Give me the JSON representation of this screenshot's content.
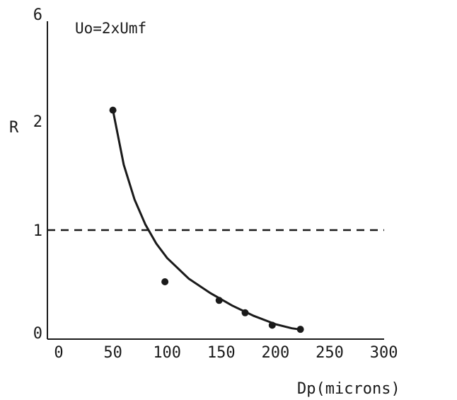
{
  "chart_data": {
    "type": "scatter",
    "title": "",
    "annotation": "Uo=2xUmf",
    "xlabel": "Dp(microns)",
    "ylabel": "R",
    "xlim": [
      0,
      300
    ],
    "x_ticks": [
      "0",
      "50",
      "100",
      "150",
      "200",
      "250",
      "300"
    ],
    "y_ticks": [
      "0",
      "1",
      "2",
      "6"
    ],
    "grid": false,
    "series": [
      {
        "kind": "points",
        "points": [
          {
            "x": 50,
            "y": 2.1
          },
          {
            "x": 98,
            "y": 0.5
          },
          {
            "x": 148,
            "y": 0.32
          },
          {
            "x": 172,
            "y": 0.2
          },
          {
            "x": 197,
            "y": 0.08
          },
          {
            "x": 223,
            "y": 0.04
          }
        ]
      },
      {
        "kind": "fitted-curve",
        "points": [
          {
            "x": 50,
            "y": 2.1
          },
          {
            "x": 60,
            "y": 1.6
          },
          {
            "x": 70,
            "y": 1.28
          },
          {
            "x": 80,
            "y": 1.05
          },
          {
            "x": 90,
            "y": 0.87
          },
          {
            "x": 100,
            "y": 0.73
          },
          {
            "x": 120,
            "y": 0.53
          },
          {
            "x": 140,
            "y": 0.39
          },
          {
            "x": 160,
            "y": 0.27
          },
          {
            "x": 180,
            "y": 0.17
          },
          {
            "x": 200,
            "y": 0.09
          },
          {
            "x": 215,
            "y": 0.05
          },
          {
            "x": 222,
            "y": 0.04
          }
        ]
      }
    ],
    "reference_line": {
      "y": 1,
      "style": "dashed"
    },
    "colors": {
      "ink": "#1a1a1a",
      "background": "#ffffff"
    }
  }
}
